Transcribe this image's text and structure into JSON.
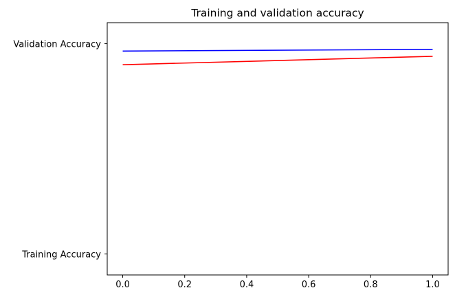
{
  "chart_data": {
    "type": "line",
    "title": "Training and validation accuracy",
    "xlabel": "",
    "ylabel": "",
    "x": [
      0.0,
      1.0
    ],
    "xlim": [
      -0.05,
      1.05
    ],
    "ylim": [
      -0.1,
      1.1
    ],
    "x_ticks": [
      0.0,
      0.2,
      0.4,
      0.6,
      0.8,
      1.0
    ],
    "x_tick_labels": [
      "0.0",
      "0.2",
      "0.4",
      "0.6",
      "0.8",
      "1.0"
    ],
    "y_ticks": [
      0,
      1
    ],
    "y_tick_labels": [
      "Training Accuracy",
      "Validation Accuracy"
    ],
    "grid": false,
    "series": [
      {
        "color": "#ff0000",
        "values": [
          0.9,
          0.94
        ]
      },
      {
        "color": "#0000ff",
        "values": [
          0.965,
          0.973
        ]
      }
    ]
  }
}
